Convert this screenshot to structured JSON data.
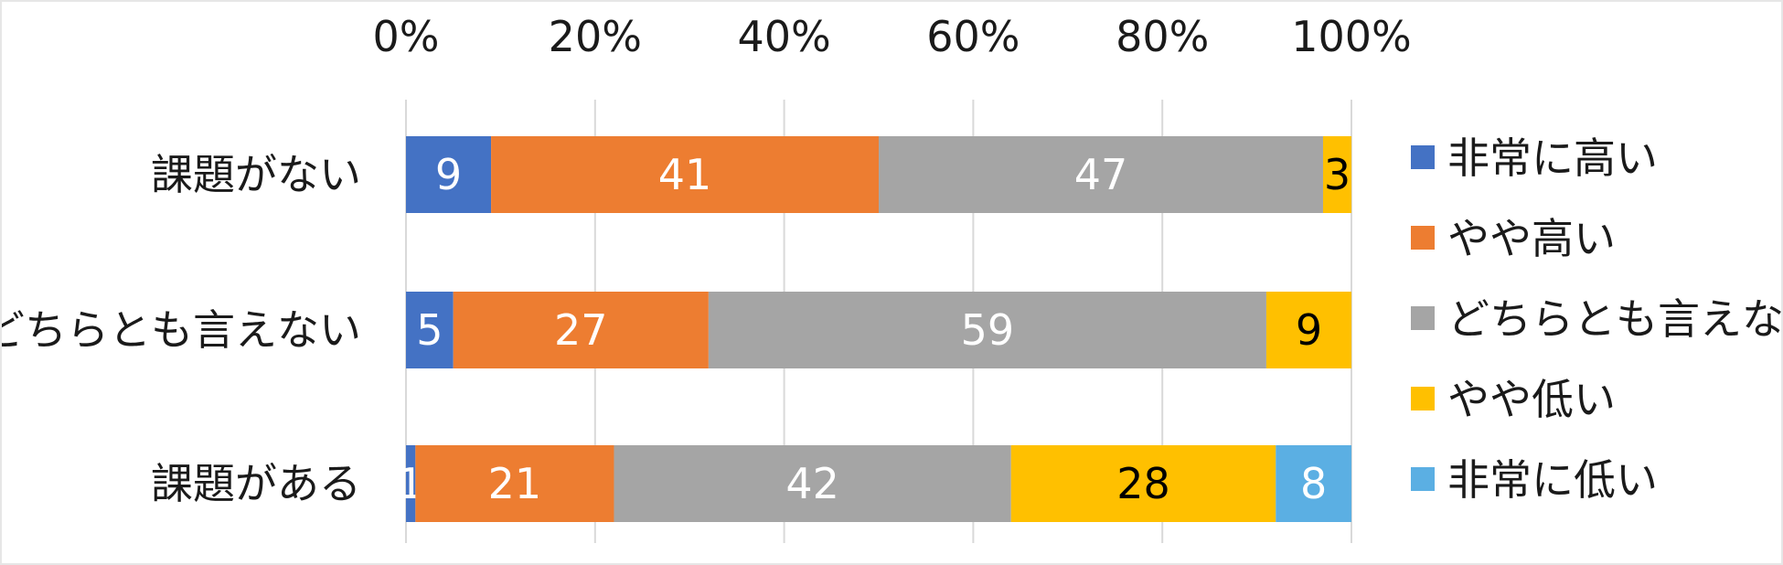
{
  "chart_data": {
    "type": "bar",
    "orientation": "horizontal",
    "stacked": "percent",
    "categories": [
      "課題がない",
      "どちらとも言えない",
      "課題がある"
    ],
    "series": [
      {
        "name": "非常に高い",
        "color": "#4472c4",
        "label_color": "#ffffff",
        "values": [
          9,
          5,
          1
        ]
      },
      {
        "name": "やや高い",
        "color": "#ed7d31",
        "label_color": "#ffffff",
        "values": [
          41,
          27,
          21
        ]
      },
      {
        "name": "どちらとも言えない",
        "color": "#a5a5a5",
        "label_color": "#ffffff",
        "values": [
          47,
          59,
          42
        ]
      },
      {
        "name": "やや低い",
        "color": "#ffc000",
        "label_color": "#000000",
        "values": [
          3,
          9,
          28
        ]
      },
      {
        "name": "非常に低い",
        "color": "#5bafe3",
        "label_color": "#ffffff",
        "values": [
          0,
          0,
          8
        ]
      }
    ],
    "x_ticks": [
      "0%",
      "20%",
      "40%",
      "60%",
      "80%",
      "100%"
    ],
    "xlim": [
      0,
      100
    ],
    "x_axis_position": "top",
    "grid": "vertical",
    "legend_position": "right"
  }
}
